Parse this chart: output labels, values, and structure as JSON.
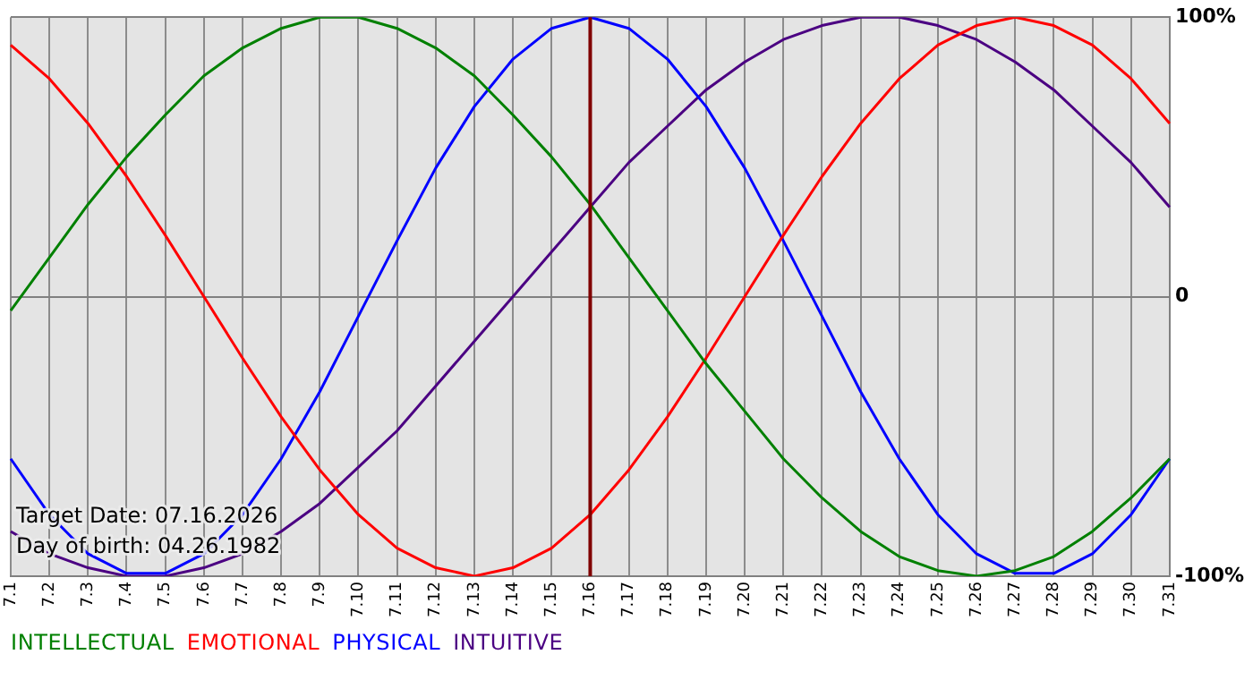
{
  "chart_data": {
    "type": "line",
    "categories": [
      "7.1",
      "7.2",
      "7.3",
      "7.4",
      "7.5",
      "7.6",
      "7.7",
      "7.8",
      "7.9",
      "7.10",
      "7.11",
      "7.12",
      "7.13",
      "7.14",
      "7.15",
      "7.16",
      "7.17",
      "7.18",
      "7.19",
      "7.20",
      "7.21",
      "7.22",
      "7.23",
      "7.24",
      "7.25",
      "7.26",
      "7.27",
      "7.28",
      "7.29",
      "7.30",
      "7.31"
    ],
    "series": [
      {
        "name": "INTELLECTUAL",
        "color": "#008000",
        "values": [
          -5,
          14,
          33,
          50,
          65,
          79,
          89,
          96,
          100,
          100,
          96,
          89,
          79,
          65,
          50,
          33,
          14,
          -5,
          -24,
          -41,
          -58,
          -72,
          -84,
          -93,
          -98,
          -100,
          -98,
          -93,
          -84,
          -72,
          -58
        ]
      },
      {
        "name": "EMOTIONAL",
        "color": "#ff0000",
        "values": [
          90,
          78,
          62,
          43,
          22,
          0,
          -22,
          -43,
          -62,
          -78,
          -90,
          -97,
          -100,
          -97,
          -90,
          -78,
          -62,
          -43,
          -22,
          0,
          22,
          43,
          62,
          78,
          90,
          97,
          100,
          97,
          90,
          78,
          62
        ]
      },
      {
        "name": "PHYSICAL",
        "color": "#0000ff",
        "values": [
          -58,
          -78,
          -92,
          -99,
          -99,
          -92,
          -78,
          -58,
          -34,
          -7,
          20,
          46,
          68,
          85,
          96,
          100,
          96,
          85,
          68,
          46,
          20,
          -7,
          -34,
          -58,
          -78,
          -92,
          -99,
          -99,
          -92,
          -78,
          -58
        ]
      },
      {
        "name": "INTUITIVE",
        "color": "#4b0082",
        "values": [
          -84,
          -92,
          -97,
          -100,
          -100,
          -97,
          -92,
          -84,
          -74,
          -61,
          -48,
          -32,
          -16,
          0,
          16,
          32,
          48,
          61,
          74,
          84,
          92,
          97,
          100,
          100,
          97,
          92,
          84,
          74,
          61,
          48,
          32
        ]
      }
    ],
    "ylim": [
      -100,
      100
    ],
    "yticks": [
      {
        "value": 100,
        "label": "100%"
      },
      0,
      {
        "value": -100,
        "label": "-100%"
      }
    ],
    "grid": true,
    "marker": "none",
    "legend": "bottom",
    "ref_lines": [
      {
        "axis": "x",
        "value": "7.16",
        "color": "#800000"
      }
    ],
    "annotations": [
      "Target Date: 07.16.2026",
      "Day of birth: 04.26.1982"
    ]
  }
}
